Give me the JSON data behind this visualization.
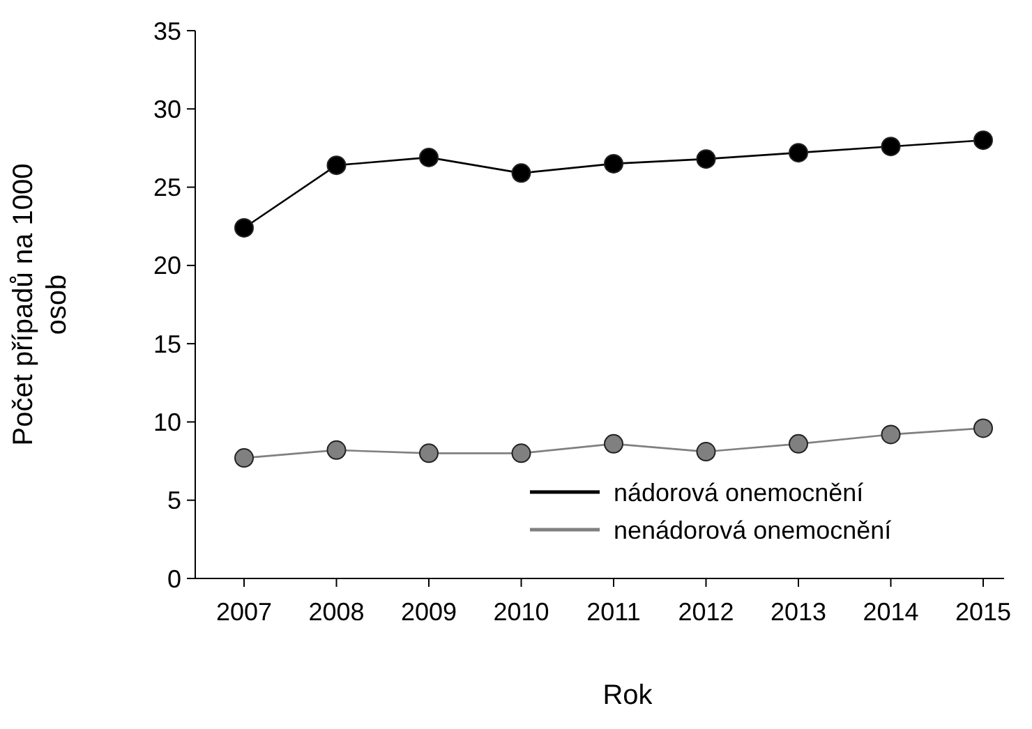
{
  "chart_data": {
    "type": "line",
    "xlabel": "Rok",
    "ylabel": "Počet případů na 1000 osob",
    "categories": [
      "2007",
      "2008",
      "2009",
      "2010",
      "2011",
      "2012",
      "2013",
      "2014",
      "2015"
    ],
    "series": [
      {
        "name": "nádorová onemocnění",
        "color": "#000000",
        "values": [
          22.4,
          26.4,
          26.9,
          25.9,
          26.5,
          26.8,
          27.2,
          27.6,
          28.0
        ]
      },
      {
        "name": "nenádorová onemocnění",
        "color": "#808080",
        "values": [
          7.7,
          8.2,
          8.0,
          8.0,
          8.6,
          8.1,
          8.6,
          9.2,
          9.6
        ]
      }
    ],
    "ylim": [
      0,
      35
    ],
    "yticks": [
      0,
      5,
      10,
      15,
      20,
      25,
      30,
      35
    ],
    "grid": false,
    "legend": "bottom right",
    "marker": "circle",
    "line_style": "solid"
  }
}
